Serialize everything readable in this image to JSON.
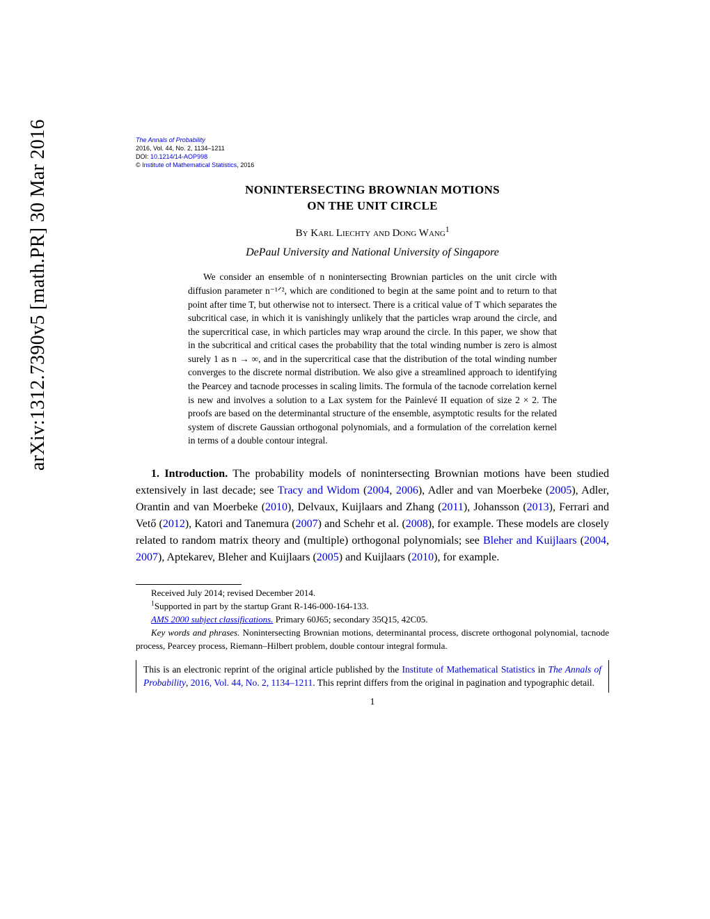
{
  "arxiv": {
    "id": "arXiv:1312.7390v5 [math.PR] 30 Mar 2016"
  },
  "journal_header": {
    "journal_name": "The Annals of Probability",
    "issue_line": "2016, Vol. 44, No. 2, 1134–1211",
    "doi_label": "DOI: ",
    "doi": "10.1214/14-AOP998",
    "copyright": "© ",
    "institute": "Institute of Mathematical Statistics",
    "year": ", 2016"
  },
  "title_line1": "NONINTERSECTING BROWNIAN MOTIONS",
  "title_line2": "ON THE UNIT CIRCLE",
  "authors_prefix": "By ",
  "authors": "Karl Liechty and Dong Wang",
  "author_sup": "1",
  "affiliation": "DePaul University and National University of Singapore",
  "abstract_text": "We consider an ensemble of n nonintersecting Brownian particles on the unit circle with diffusion parameter n⁻¹ᐟ², which are conditioned to begin at the same point and to return to that point after time T, but otherwise not to intersect. There is a critical value of T which separates the subcritical case, in which it is vanishingly unlikely that the particles wrap around the circle, and the supercritical case, in which particles may wrap around the circle. In this paper, we show that in the subcritical and critical cases the probability that the total winding number is zero is almost surely 1 as n → ∞, and in the supercritical case that the distribution of the total winding number converges to the discrete normal distribution. We also give a streamlined approach to identifying the Pearcey and tacnode processes in scaling limits. The formula of the tacnode correlation kernel is new and involves a solution to a Lax system for the Painlevé II equation of size 2 × 2. The proofs are based on the determinantal structure of the ensemble, asymptotic results for the related system of discrete Gaussian orthogonal polynomials, and a formulation of the correlation kernel in terms of a double contour integral.",
  "section_number": "1. Introduction.",
  "body_pre": "   The probability models of nonintersecting Brownian motions have been studied extensively in last decade; see ",
  "cite1": "Tracy and Widom",
  "body_p1": " (",
  "cite1a": "2004",
  "body_p2": ", ",
  "cite1b": "2006",
  "body_p3": "), Adler and van Moerbeke (",
  "cite2": "2005",
  "body_p4": "), Adler, Orantin and van Moerbeke (",
  "cite3": "2010",
  "body_p5": "), Delvaux, Kuijlaars and Zhang (",
  "cite4": "2011",
  "body_p6": "), Johansson (",
  "cite5": "2013",
  "body_p7": "), Ferrari and Vető (",
  "cite6": "2012",
  "body_p8": "), Katori and Tanemura (",
  "cite7": "2007",
  "body_p9": ") and Schehr et al. (",
  "cite8": "2008",
  "body_p10": "), for example. These models are closely related to random matrix theory and (multiple) orthogonal polynomials; see ",
  "cite9": "Bleher and Kuijlaars",
  "body_p11": " (",
  "cite9a": "2004",
  "body_p12": ", ",
  "cite9b": "2007",
  "body_p13": "), Aptekarev, Bleher and Kuijlaars (",
  "cite10": "2005",
  "body_p14": ") and Kuijlaars (",
  "cite11": "2010",
  "body_p15": "), for example.",
  "footnotes": {
    "received": "Received July 2014; revised December 2014.",
    "support_sup": "1",
    "support": "Supported in part by the startup Grant R-146-000-164-133.",
    "ams_label": "AMS 2000 subject classifications.",
    "ams_text": " Primary 60J65; secondary 35Q15, 42C05.",
    "keywords_label": "Key words and phrases.",
    "keywords_text": " Nonintersecting Brownian motions, determinantal process, discrete orthogonal polynomial, tacnode process, Pearcey process, Riemann–Hilbert problem, double contour integral formula."
  },
  "reprint": {
    "line1": "This is an electronic reprint of the original article published by the ",
    "inst": "Institute of Mathematical Statistics",
    "in": " in ",
    "journal": "The Annals of Probability",
    "comma": ", ",
    "issue": "2016, Vol. 44, No. 2, 1134–1211",
    "rest": ". This reprint differs from the original in pagination and typographic detail."
  },
  "page_number": "1",
  "colors": {
    "link": "#0000dd",
    "text": "#000000",
    "background": "#ffffff"
  }
}
